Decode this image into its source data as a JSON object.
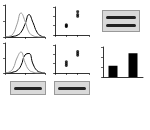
{
  "chart_data": [
    {
      "type": "line",
      "x": [
        0,
        10,
        20,
        30,
        40,
        50,
        60,
        70,
        80,
        90,
        100
      ],
      "series": [
        {
          "color": "#000000",
          "values": [
            0,
            0,
            2,
            5,
            15,
            40,
            70,
            45,
            15,
            3,
            0
          ]
        },
        {
          "color": "#9a9a9a",
          "values": [
            0,
            2,
            10,
            40,
            75,
            50,
            15,
            4,
            1,
            0,
            0
          ]
        }
      ],
      "xlim": [
        0,
        100
      ],
      "xticks": [
        0,
        50,
        100
      ],
      "ylim": [
        0,
        100
      ],
      "yticks": [
        0,
        50,
        100
      ],
      "grid": false,
      "tick_labels": false
    },
    {
      "type": "scatter",
      "x": [
        1,
        1,
        1,
        2,
        2,
        2
      ],
      "values": [
        1.0,
        1.1,
        0.9,
        2.2,
        2.5,
        2.0
      ],
      "color": "#000000",
      "marker": "circle",
      "xlim": [
        0,
        3
      ],
      "xticks": [
        0,
        1,
        2,
        3
      ],
      "ylim": [
        0,
        3
      ],
      "yticks": [
        0,
        1,
        2,
        3
      ],
      "grid": false,
      "tick_labels": false
    },
    {
      "type": "line",
      "x": [
        0,
        10,
        20,
        30,
        40,
        50,
        60,
        70,
        80,
        90,
        100
      ],
      "series": [
        {
          "color": "#000000",
          "values": [
            0,
            0,
            3,
            8,
            25,
            60,
            65,
            30,
            8,
            2,
            0
          ]
        },
        {
          "color": "#9a9a9a",
          "values": [
            0,
            3,
            15,
            50,
            70,
            35,
            10,
            3,
            0,
            0,
            0
          ]
        }
      ],
      "xlim": [
        0,
        100
      ],
      "xticks": [
        0,
        50,
        100
      ],
      "ylim": [
        0,
        100
      ],
      "yticks": [
        0,
        50,
        100
      ],
      "grid": false,
      "tick_labels": false
    },
    {
      "type": "scatter",
      "x": [
        1,
        1,
        1,
        2,
        2,
        2
      ],
      "values": [
        1.0,
        0.8,
        1.2,
        1.9,
        2.3,
        2.1
      ],
      "color": "#000000",
      "marker": "circle",
      "xlim": [
        0,
        3
      ],
      "xticks": [
        0,
        1,
        2,
        3
      ],
      "ylim": [
        0,
        3
      ],
      "yticks": [
        0,
        1,
        2,
        3
      ],
      "grid": false,
      "tick_labels": false
    },
    {
      "type": "bar",
      "categories": [
        null,
        null
      ],
      "values": [
        0.45,
        0.95
      ],
      "color": "#000000",
      "ylim": [
        0,
        1.2
      ],
      "yticks": [
        0,
        0.4,
        0.8,
        1.2
      ],
      "grid": false,
      "tick_labels": false
    }
  ]
}
